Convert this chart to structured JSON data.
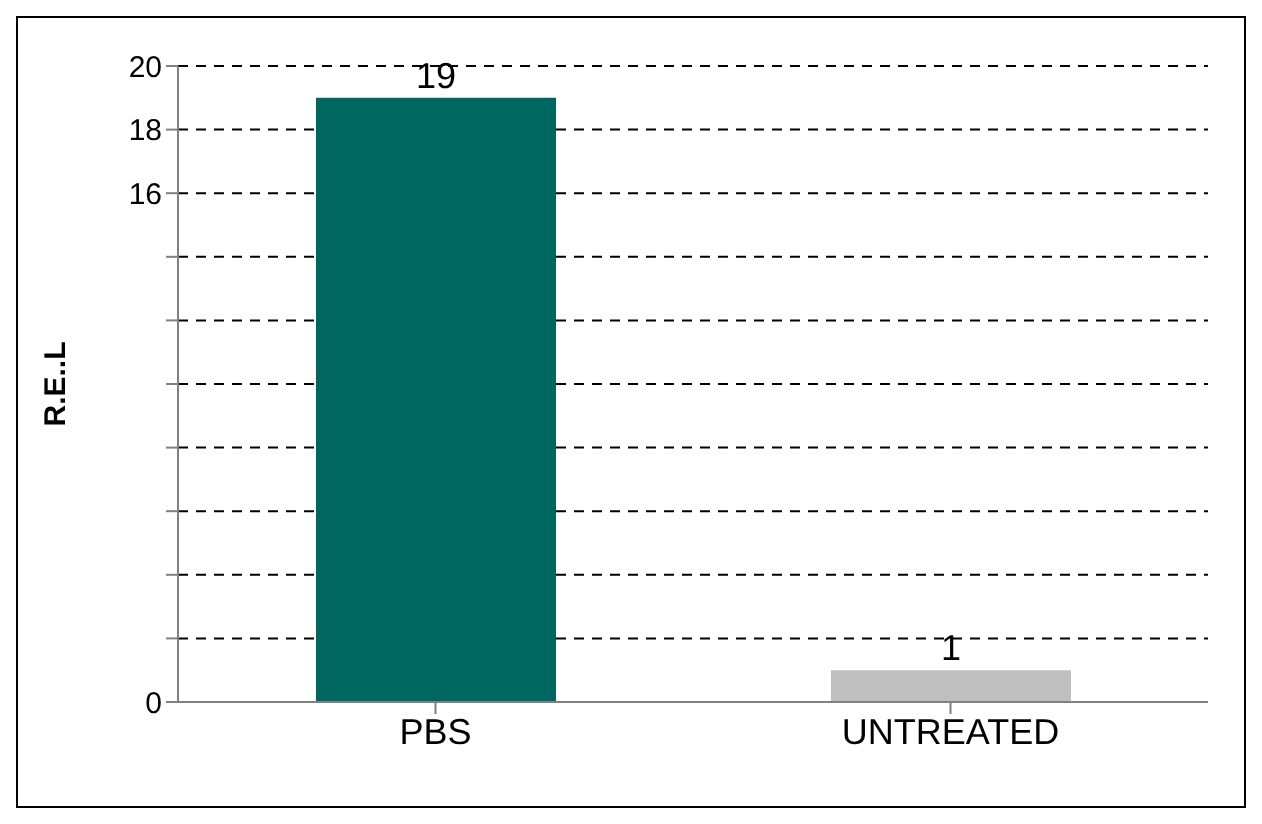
{
  "chart_data": {
    "type": "bar",
    "ylabel": "R.E..L",
    "categories": [
      "PBS",
      "UNTREATED"
    ],
    "values": [
      19,
      1
    ],
    "colors": [
      "#006760",
      "#bfbfbf"
    ],
    "ylim": [
      0,
      20
    ],
    "yticks": [
      0,
      {
        "value": 2,
        "label": null
      },
      {
        "value": 4,
        "label": null
      },
      {
        "value": 6,
        "label": null
      },
      {
        "value": 8,
        "label": null
      },
      {
        "value": 10,
        "label": null
      },
      {
        "value": 12,
        "label": null
      },
      {
        "value": 14,
        "label": null
      },
      16,
      18,
      20
    ],
    "grid": "y",
    "data_labels": true
  }
}
